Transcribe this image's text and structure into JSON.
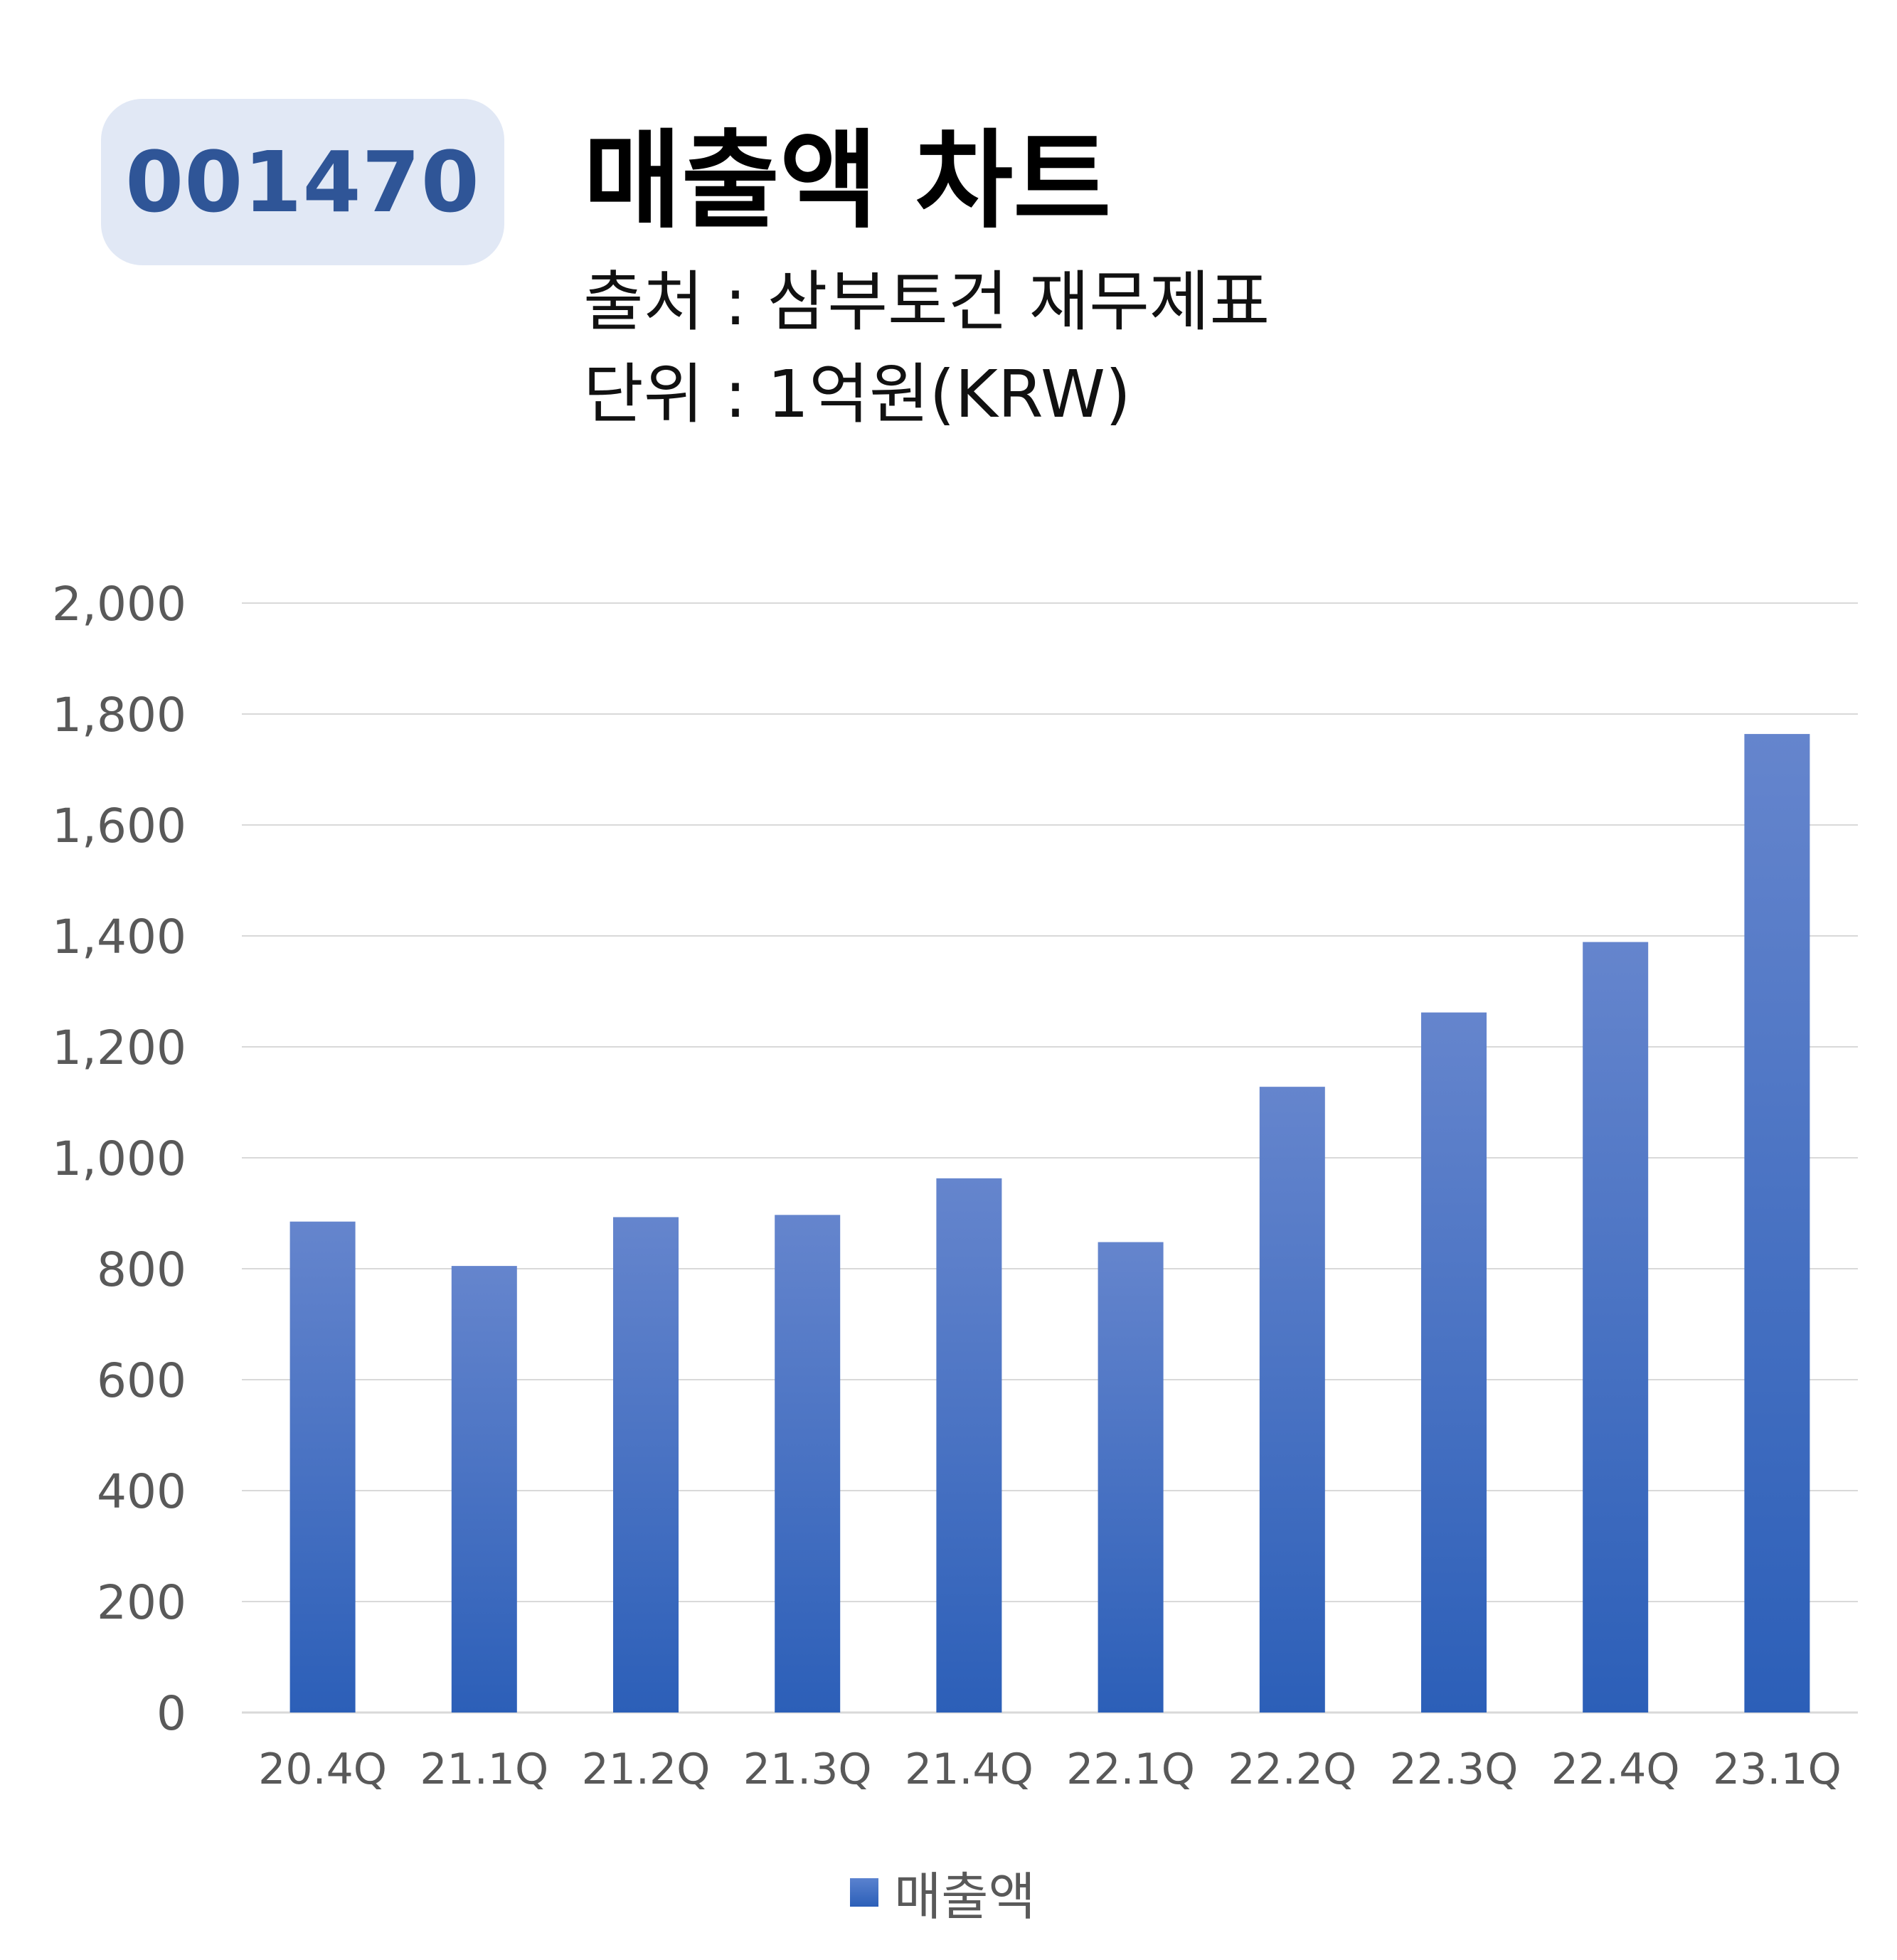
{
  "header": {
    "ticker": "001470",
    "title": "매출액 차트",
    "source_line": "출처 : 삼부토건 재무제표",
    "unit_line": "단위 : 1억원(KRW)"
  },
  "chart_data": {
    "type": "bar",
    "categories": [
      "20.4Q",
      "21.1Q",
      "21.2Q",
      "21.3Q",
      "21.4Q",
      "22.1Q",
      "22.2Q",
      "22.3Q",
      "22.4Q",
      "23.1Q"
    ],
    "series": [
      {
        "name": "매출액",
        "values": [
          885,
          805,
          893,
          897,
          963,
          848,
          1128,
          1262,
          1389,
          1764
        ]
      }
    ],
    "ylim": [
      0,
      2000
    ],
    "yticks": [
      0,
      200,
      400,
      600,
      800,
      1000,
      1200,
      1400,
      1600,
      1800,
      2000
    ],
    "ytick_labels": [
      "0",
      "200",
      "400",
      "600",
      "800",
      "1,000",
      "1,200",
      "1,400",
      "1,600",
      "1,800",
      "2,000"
    ],
    "grid": true,
    "legend_position": "bottom",
    "colors": {
      "bar_top": "#6585cd",
      "bar_bottom": "#2c5fb8",
      "grid": "#d9d9d9",
      "tick_text": "#595959"
    }
  }
}
